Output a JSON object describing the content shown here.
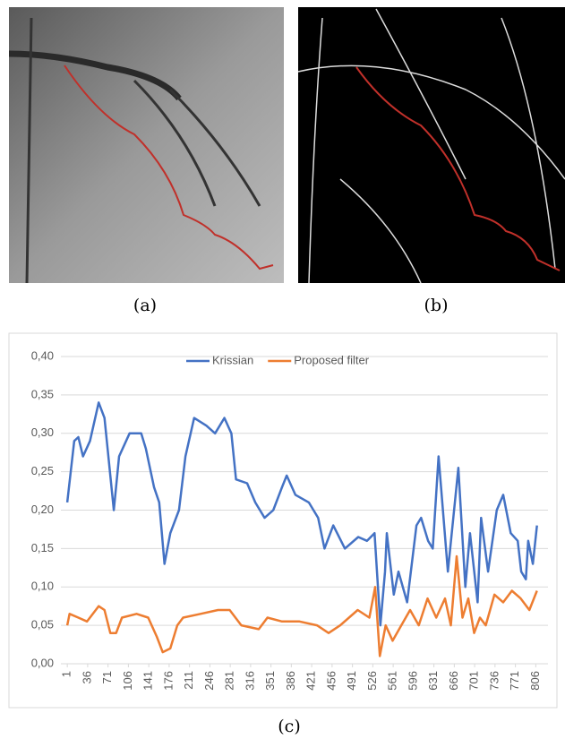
{
  "panels": [
    {
      "label": "(a)"
    },
    {
      "label": "(b)"
    },
    {
      "label": "(c)"
    }
  ],
  "chart_data": {
    "type": "line",
    "series": [
      {
        "name": "Krissian",
        "color": "#4472c4",
        "x": [
          1,
          13,
          20,
          28,
          40,
          55,
          65,
          81,
          90,
          108,
          128,
          136,
          150,
          159,
          168,
          178,
          193,
          204,
          219,
          240,
          255,
          271,
          283,
          291,
          310,
          324,
          340,
          355,
          370,
          378,
          393,
          416,
          432,
          443,
          458,
          478,
          501,
          516,
          529,
          539,
          547,
          550,
          562,
          570,
          585,
          601,
          609,
          621,
          629,
          639,
          655,
          673,
          685,
          693,
          706,
          712,
          724,
          739,
          750,
          763,
          775,
          781,
          789,
          793,
          801,
          808
        ],
        "values": [
          0.21,
          0.29,
          0.295,
          0.27,
          0.29,
          0.34,
          0.32,
          0.2,
          0.27,
          0.3,
          0.3,
          0.28,
          0.23,
          0.21,
          0.13,
          0.17,
          0.2,
          0.27,
          0.32,
          0.31,
          0.3,
          0.32,
          0.3,
          0.24,
          0.235,
          0.21,
          0.19,
          0.2,
          0.23,
          0.245,
          0.22,
          0.21,
          0.19,
          0.15,
          0.18,
          0.15,
          0.165,
          0.16,
          0.17,
          0.05,
          0.12,
          0.17,
          0.09,
          0.12,
          0.08,
          0.18,
          0.19,
          0.16,
          0.15,
          0.27,
          0.12,
          0.255,
          0.1,
          0.17,
          0.08,
          0.19,
          0.12,
          0.2,
          0.22,
          0.17,
          0.16,
          0.12,
          0.11,
          0.16,
          0.13,
          0.18
        ]
      },
      {
        "name": "Proposed filter",
        "color": "#ed7d31",
        "x": [
          1,
          5,
          20,
          35,
          55,
          65,
          75,
          85,
          95,
          120,
          140,
          155,
          165,
          178,
          190,
          200,
          230,
          260,
          280,
          300,
          330,
          345,
          370,
          400,
          430,
          450,
          470,
          500,
          520,
          530,
          538,
          548,
          560,
          575,
          590,
          605,
          620,
          635,
          650,
          660,
          670,
          680,
          690,
          700,
          710,
          720,
          735,
          750,
          765,
          780,
          795,
          808
        ],
        "values": [
          0.05,
          0.065,
          0.06,
          0.055,
          0.075,
          0.07,
          0.04,
          0.04,
          0.06,
          0.065,
          0.06,
          0.035,
          0.015,
          0.02,
          0.05,
          0.06,
          0.065,
          0.07,
          0.07,
          0.05,
          0.045,
          0.06,
          0.055,
          0.055,
          0.05,
          0.04,
          0.05,
          0.07,
          0.06,
          0.1,
          0.01,
          0.05,
          0.03,
          0.05,
          0.07,
          0.05,
          0.085,
          0.06,
          0.085,
          0.05,
          0.14,
          0.06,
          0.085,
          0.04,
          0.06,
          0.05,
          0.09,
          0.08,
          0.095,
          0.085,
          0.07,
          0.095
        ]
      }
    ],
    "xlim": [
      -10,
      827
    ],
    "xticks": [
      1,
      36,
      71,
      106,
      141,
      176,
      211,
      246,
      281,
      316,
      351,
      386,
      421,
      456,
      491,
      526,
      561,
      596,
      631,
      666,
      701,
      736,
      771,
      806
    ],
    "ylim": [
      0,
      0.4
    ],
    "yticks": [
      {
        "value": 0,
        "label": "0,00"
      },
      {
        "value": 0.05,
        "label": "0,05"
      },
      {
        "value": 0.1,
        "label": "0,10"
      },
      {
        "value": 0.15,
        "label": "0,15"
      },
      {
        "value": 0.2,
        "label": "0,20"
      },
      {
        "value": 0.25,
        "label": "0,25"
      },
      {
        "value": 0.3,
        "label": "0,30"
      },
      {
        "value": 0.35,
        "label": "0,35"
      },
      {
        "value": 0.4,
        "label": "0,40"
      }
    ],
    "grid": true,
    "legend": "top"
  }
}
